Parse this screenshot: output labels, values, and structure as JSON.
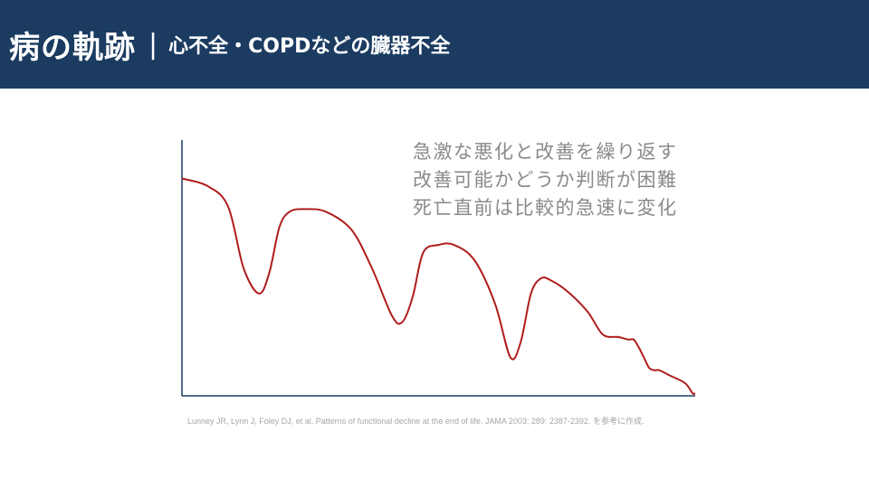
{
  "header": {
    "title": "病の軌跡",
    "separator": "|",
    "subtitle": "心不全・COPDなどの臓器不全"
  },
  "colors": {
    "header_bg": "#1b3b61",
    "curve": "#b01c1c",
    "axis": "#1b3b61",
    "note_text": "#8a8a8a"
  },
  "chart_data": {
    "type": "line",
    "title": "",
    "xlabel": "",
    "ylabel": "",
    "xlim": [
      0,
      100
    ],
    "ylim": [
      0,
      100
    ],
    "grid": false,
    "annotations": [
      "急激な悪化と改善を繰り返す",
      "改善可能かどうか判断が困難",
      "死亡直前は比較的急速に変化"
    ],
    "series": [
      {
        "x": [
          0,
          5,
          9,
          12,
          15,
          17,
          19,
          21,
          24,
          28,
          33,
          37,
          41,
          43,
          45,
          47,
          50,
          53,
          57,
          61,
          64,
          66,
          68,
          70,
          72,
          75,
          79,
          82,
          85,
          87,
          88,
          89,
          90,
          91,
          92,
          93,
          95,
          98,
          99.5,
          100
        ],
        "y": [
          85,
          82,
          74,
          50,
          40,
          48,
          66,
          72,
          73,
          72,
          65,
          50,
          31,
          29,
          39,
          56,
          59,
          59,
          53,
          36,
          15,
          21,
          40,
          46,
          45,
          41,
          33,
          24,
          23,
          22,
          22,
          19,
          15,
          11,
          10,
          10,
          8,
          5,
          1,
          1
        ]
      }
    ]
  },
  "citation": "Lunney JR, Lynn J, Foley DJ, et al. Patterns of functional decline at the end of life. JAMA 2003; 289: 2387-2392. を参考に作成."
}
